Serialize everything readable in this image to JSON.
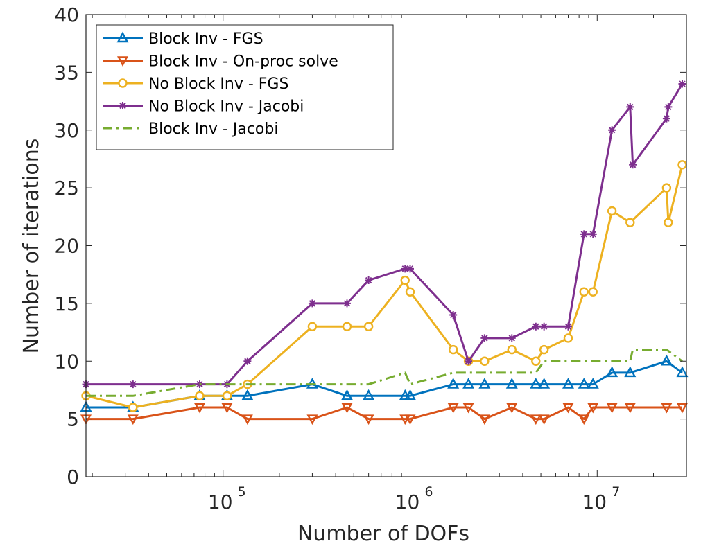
{
  "chart_data": {
    "type": "line",
    "xlabel": "Number of DOFs",
    "ylabel": "Number of iterations",
    "xscale": "log",
    "xlim": [
      18500,
      30000000
    ],
    "ylim": [
      0,
      40
    ],
    "y_ticks": [
      0,
      5,
      10,
      15,
      20,
      25,
      30,
      35,
      40
    ],
    "x_ticks": [
      {
        "value": 100000,
        "base": "10",
        "exp": "5"
      },
      {
        "value": 1000000,
        "base": "10",
        "exp": "6"
      },
      {
        "value": 10000000,
        "base": "10",
        "exp": "7"
      }
    ],
    "grid": false,
    "legend_position": "top-left",
    "series": [
      {
        "name": "Block Inv - FGS",
        "color": "#0072BD",
        "marker": "triangle-up",
        "dash": "solid",
        "points": [
          [
            18500,
            6
          ],
          [
            33000,
            6
          ],
          [
            75000,
            7
          ],
          [
            105000,
            7
          ],
          [
            135000,
            7
          ],
          [
            300000,
            8
          ],
          [
            460000,
            7
          ],
          [
            600000,
            7
          ],
          [
            940000,
            7
          ],
          [
            1000000,
            7
          ],
          [
            1700000,
            8
          ],
          [
            2050000,
            8
          ],
          [
            2500000,
            8
          ],
          [
            3500000,
            8
          ],
          [
            4700000,
            8
          ],
          [
            5200000,
            8
          ],
          [
            7000000,
            8
          ],
          [
            8500000,
            8
          ],
          [
            9500000,
            8
          ],
          [
            12000000,
            9
          ],
          [
            15000000,
            9
          ],
          [
            23500000,
            10
          ],
          [
            28500000,
            9
          ]
        ]
      },
      {
        "name": "Block Inv - On-proc solve",
        "color": "#D95319",
        "marker": "triangle-down",
        "dash": "solid",
        "points": [
          [
            18500,
            5
          ],
          [
            33000,
            5
          ],
          [
            75000,
            6
          ],
          [
            105000,
            6
          ],
          [
            135000,
            5
          ],
          [
            300000,
            5
          ],
          [
            460000,
            6
          ],
          [
            600000,
            5
          ],
          [
            940000,
            5
          ],
          [
            1000000,
            5
          ],
          [
            1700000,
            6
          ],
          [
            2050000,
            6
          ],
          [
            2500000,
            5
          ],
          [
            3500000,
            6
          ],
          [
            4700000,
            5
          ],
          [
            5200000,
            5
          ],
          [
            7000000,
            6
          ],
          [
            8500000,
            5
          ],
          [
            9500000,
            6
          ],
          [
            12000000,
            6
          ],
          [
            15000000,
            6
          ],
          [
            23500000,
            6
          ],
          [
            28500000,
            6
          ]
        ]
      },
      {
        "name": "No Block Inv - FGS",
        "color": "#EDB120",
        "marker": "circle",
        "dash": "solid",
        "points": [
          [
            18500,
            7
          ],
          [
            33000,
            6
          ],
          [
            75000,
            7
          ],
          [
            105000,
            7
          ],
          [
            135000,
            8
          ],
          [
            300000,
            13
          ],
          [
            460000,
            13
          ],
          [
            600000,
            13
          ],
          [
            940000,
            17
          ],
          [
            1000000,
            16
          ],
          [
            1700000,
            11
          ],
          [
            2050000,
            10
          ],
          [
            2500000,
            10
          ],
          [
            3500000,
            11
          ],
          [
            4700000,
            10
          ],
          [
            5200000,
            11
          ],
          [
            7000000,
            12
          ],
          [
            8500000,
            16
          ],
          [
            9500000,
            16
          ],
          [
            12000000,
            23
          ],
          [
            15000000,
            22
          ],
          [
            23500000,
            25
          ],
          [
            24000000,
            22
          ],
          [
            28500000,
            27
          ]
        ]
      },
      {
        "name": "No Block Inv - Jacobi",
        "color": "#7E2F8E",
        "marker": "star",
        "dash": "solid",
        "points": [
          [
            18500,
            8
          ],
          [
            33000,
            8
          ],
          [
            75000,
            8
          ],
          [
            105000,
            8
          ],
          [
            135000,
            10
          ],
          [
            300000,
            15
          ],
          [
            460000,
            15
          ],
          [
            600000,
            17
          ],
          [
            940000,
            18
          ],
          [
            1000000,
            18
          ],
          [
            1700000,
            14
          ],
          [
            2050000,
            10
          ],
          [
            2500000,
            12
          ],
          [
            3500000,
            12
          ],
          [
            4700000,
            13
          ],
          [
            5200000,
            13
          ],
          [
            7000000,
            13
          ],
          [
            8500000,
            21
          ],
          [
            9500000,
            21
          ],
          [
            12000000,
            30
          ],
          [
            15000000,
            32
          ],
          [
            15500000,
            27
          ],
          [
            23500000,
            31
          ],
          [
            24000000,
            32
          ],
          [
            28500000,
            34
          ]
        ]
      },
      {
        "name": "Block Inv - Jacobi",
        "color": "#77AC30",
        "marker": "none",
        "dash": "dashdot",
        "points": [
          [
            18500,
            7
          ],
          [
            33000,
            7
          ],
          [
            75000,
            8
          ],
          [
            105000,
            8
          ],
          [
            135000,
            8
          ],
          [
            300000,
            8
          ],
          [
            460000,
            8
          ],
          [
            600000,
            8
          ],
          [
            940000,
            9
          ],
          [
            1000000,
            8
          ],
          [
            1700000,
            9
          ],
          [
            2050000,
            9
          ],
          [
            2500000,
            9
          ],
          [
            3500000,
            9
          ],
          [
            4700000,
            9
          ],
          [
            5200000,
            10
          ],
          [
            7000000,
            10
          ],
          [
            8500000,
            10
          ],
          [
            9500000,
            10
          ],
          [
            12000000,
            10
          ],
          [
            15000000,
            10
          ],
          [
            15500000,
            11
          ],
          [
            23500000,
            11
          ],
          [
            28500000,
            10
          ]
        ]
      }
    ]
  }
}
